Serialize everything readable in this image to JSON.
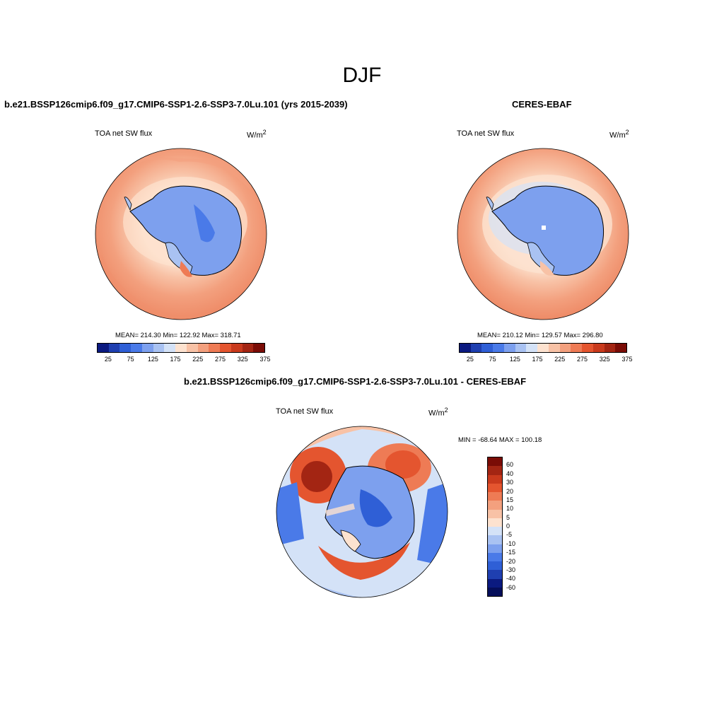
{
  "figure": {
    "main_title": "DJF",
    "panel1_title": "b.e21.BSSP126cmip6.f09_g17.CMIP6-SSP1-2.6-SSP3-7.0Lu.101 (yrs 2015-2039)",
    "panel2_title": "CERES-EBAF",
    "panel3_title": "b.e21.BSSP126cmip6.f09_g17.CMIP6-SSP1-2.6-SSP3-7.0Lu.101 - CERES-EBAF"
  },
  "panels": [
    {
      "variable": "TOA net SW flux",
      "units_base": "W/m",
      "units_exp": "2",
      "stats": "MEAN= 214.30  Min= 122.92  Max= 318.71"
    },
    {
      "variable": "TOA net SW flux",
      "units_base": "W/m",
      "units_exp": "2",
      "stats": "MEAN= 210.12  Min= 129.57  Max= 296.80"
    },
    {
      "variable": "TOA net SW flux",
      "units_base": "W/m",
      "units_exp": "2",
      "stats": "MIN = -68.64 MAX = 100.18"
    }
  ],
  "chart_data": [
    {
      "type": "heatmap",
      "title": "b.e21.BSSP126cmip6.f09_g17.CMIP6-SSP1-2.6-SSP3-7.0Lu.101 (yrs 2015-2039)",
      "variable": "TOA net SW flux",
      "units": "W/m2",
      "projection": "south polar stereographic",
      "mean": 214.3,
      "min": 122.92,
      "max": 318.71,
      "colorbar_labels": [
        "25",
        "75",
        "125",
        "175",
        "225",
        "275",
        "325",
        "375"
      ],
      "colorbar_colors": [
        "#0b1a80",
        "#1f3fb0",
        "#2f5fd6",
        "#4a7ae8",
        "#7da0ee",
        "#a9c2f2",
        "#d4e2f7",
        "#fde2cf",
        "#f8c2a6",
        "#f3a07e",
        "#ee7b55",
        "#e4552f",
        "#c93a1d",
        "#a32513",
        "#7a0c06"
      ]
    },
    {
      "type": "heatmap",
      "title": "CERES-EBAF",
      "variable": "TOA net SW flux",
      "units": "W/m2",
      "projection": "south polar stereographic",
      "mean": 210.12,
      "min": 129.57,
      "max": 296.8,
      "colorbar_labels": [
        "25",
        "75",
        "125",
        "175",
        "225",
        "275",
        "325",
        "375"
      ],
      "colorbar_colors": [
        "#0b1a80",
        "#1f3fb0",
        "#2f5fd6",
        "#4a7ae8",
        "#7da0ee",
        "#a9c2f2",
        "#d4e2f7",
        "#fde2cf",
        "#f8c2a6",
        "#f3a07e",
        "#ee7b55",
        "#e4552f",
        "#c93a1d",
        "#a32513",
        "#7a0c06"
      ]
    },
    {
      "type": "heatmap",
      "title": "b.e21.BSSP126cmip6.f09_g17.CMIP6-SSP1-2.6-SSP3-7.0Lu.101 - CERES-EBAF",
      "variable": "TOA net SW flux",
      "units": "W/m2",
      "projection": "south polar stereographic",
      "min": -68.64,
      "max": 100.18,
      "colorbar_labels": [
        "60",
        "40",
        "30",
        "20",
        "15",
        "10",
        "5",
        "0",
        "-5",
        "-10",
        "-15",
        "-20",
        "-30",
        "-40",
        "-60"
      ],
      "colorbar_colors": [
        "#7a0c06",
        "#a32513",
        "#c93a1d",
        "#e4552f",
        "#ee7b55",
        "#f3a07e",
        "#f8c2a6",
        "#fde2cf",
        "#d4e2f7",
        "#a9c2f2",
        "#7da0ee",
        "#4a7ae8",
        "#2f5fd6",
        "#1f3fb0",
        "#0b1a80",
        "#050e5a"
      ]
    }
  ]
}
